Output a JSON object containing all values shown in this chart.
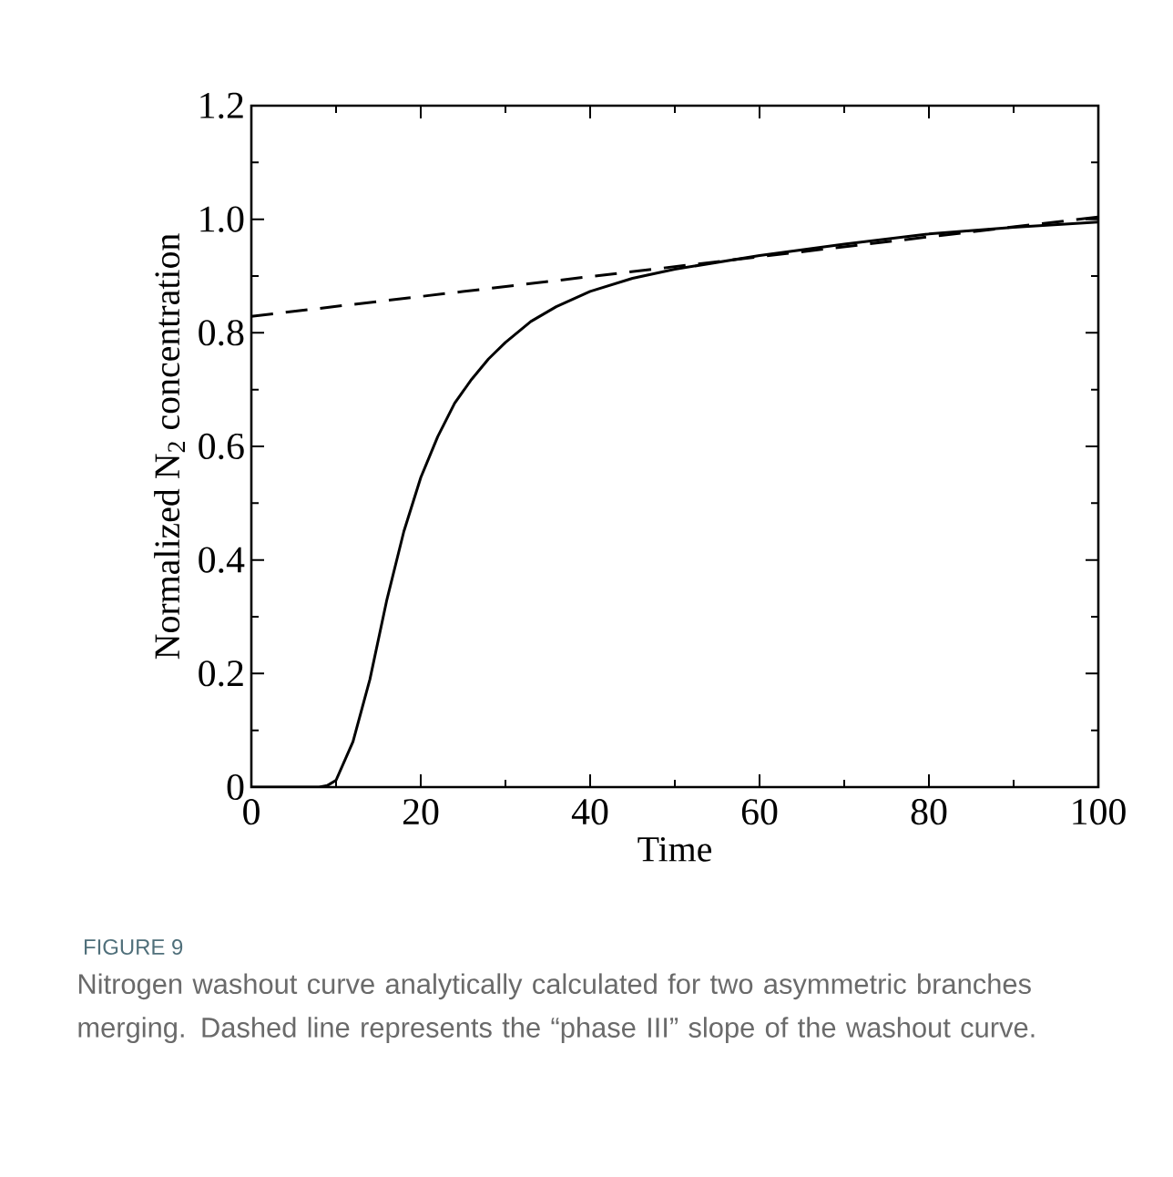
{
  "chart_data": {
    "type": "line",
    "xlabel": "Time",
    "ylabel": "Normalized N$_{2}$ concentration",
    "xlim": [
      0,
      100
    ],
    "ylim": [
      0,
      1.2
    ],
    "xticks": [
      0,
      20,
      40,
      60,
      80,
      100
    ],
    "yticks": [
      0,
      0.2,
      0.4,
      0.6,
      0.8,
      {
        "value": 1,
        "label": "1.0"
      },
      1.2
    ],
    "grid": false,
    "annotations": [
      "FIGURE 9",
      "Nitrogen washout curve analytically calculated for two asymmetric branches merging. Dashed line represents the “phase III” slope of the washout curve."
    ],
    "series": [
      {
        "color": "#000000",
        "line_style": "solid",
        "x": [
          0,
          8,
          9,
          10,
          12,
          14,
          16,
          18,
          20,
          22,
          24,
          26,
          28,
          30,
          33,
          36,
          40,
          45,
          50,
          60,
          70,
          80,
          90,
          100
        ],
        "values": [
          0,
          0,
          0.003,
          0.012,
          0.08,
          0.19,
          0.33,
          0.45,
          0.545,
          0.617,
          0.676,
          0.718,
          0.754,
          0.783,
          0.82,
          0.846,
          0.873,
          0.896,
          0.912,
          0.936,
          0.956,
          0.974,
          0.986,
          0.995
        ]
      },
      {
        "color": "#000000",
        "line_style": "dashed",
        "x": [
          0,
          100
        ],
        "values": [
          0.829,
          1.004
        ]
      }
    ]
  }
}
